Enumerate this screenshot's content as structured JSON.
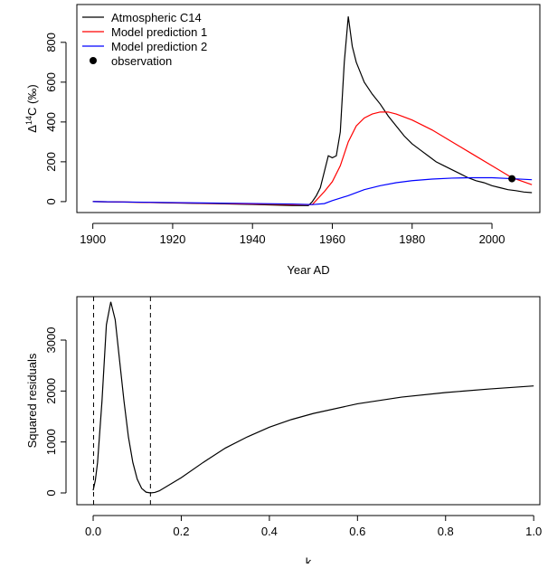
{
  "chart_data": [
    {
      "type": "line",
      "xlabel": "Year AD",
      "ylabel": {
        "prefix": "Δ",
        "sup": "14",
        "suffix": "C (‰)"
      },
      "xlim": [
        1896,
        2012
      ],
      "ylim": [
        -55,
        990
      ],
      "xticks": [
        1900,
        1920,
        1940,
        1960,
        1980,
        2000
      ],
      "yticks": [
        0,
        200,
        400,
        600,
        800
      ],
      "legend": "topleft",
      "series": [
        {
          "name": "Atmospheric C14",
          "color": "#000000",
          "x": [
            1900,
            1910,
            1920,
            1930,
            1940,
            1950,
            1954,
            1955,
            1956,
            1957,
            1958,
            1959,
            1960,
            1961,
            1962,
            1963,
            1964,
            1965,
            1966,
            1967,
            1968,
            1969,
            1970,
            1972,
            1974,
            1976,
            1978,
            1980,
            1982,
            1984,
            1986,
            1988,
            1990,
            1992,
            1994,
            1996,
            1998,
            2000,
            2002,
            2004,
            2006,
            2008,
            2010
          ],
          "values": [
            0,
            -3,
            -7,
            -10,
            -14,
            -20,
            -20,
            0,
            30,
            70,
            150,
            230,
            220,
            230,
            350,
            700,
            930,
            780,
            700,
            650,
            600,
            570,
            540,
            490,
            430,
            380,
            330,
            290,
            260,
            230,
            200,
            180,
            160,
            140,
            120,
            105,
            95,
            80,
            70,
            60,
            55,
            48,
            45
          ]
        },
        {
          "name": "Model prediction 1",
          "color": "#ff0000",
          "x": [
            1900,
            1950,
            1955,
            1958,
            1960,
            1962,
            1964,
            1966,
            1968,
            1970,
            1972,
            1974,
            1976,
            1980,
            1985,
            1990,
            1995,
            2000,
            2005,
            2010
          ],
          "values": [
            0,
            -15,
            -15,
            50,
            100,
            180,
            300,
            380,
            420,
            440,
            450,
            450,
            440,
            410,
            360,
            300,
            240,
            180,
            120,
            85
          ]
        },
        {
          "name": "Model prediction 2",
          "color": "#0000ff",
          "x": [
            1900,
            1950,
            1955,
            1958,
            1960,
            1964,
            1968,
            1972,
            1976,
            1980,
            1985,
            1990,
            1995,
            2000,
            2005,
            2010
          ],
          "values": [
            0,
            -12,
            -15,
            -10,
            5,
            30,
            60,
            80,
            95,
            105,
            113,
            118,
            120,
            120,
            115,
            110
          ]
        },
        {
          "name": "observation",
          "color": "#000000",
          "marker": "point",
          "x": [
            2005
          ],
          "values": [
            115
          ]
        }
      ]
    },
    {
      "type": "line",
      "xlabel": "k",
      "ylabel": "Squared residuals",
      "xlim": [
        -0.037,
        1.014
      ],
      "ylim": [
        -231,
        3852
      ],
      "xticks": [
        {
          "value": 0,
          "label": "0.0"
        },
        0.2,
        0.4,
        0.6,
        0.8,
        {
          "value": 1,
          "label": "1.0"
        }
      ],
      "yticks": [
        0,
        1000,
        2000,
        3000
      ],
      "vlines": [
        0.001,
        0.13
      ],
      "series": [
        {
          "color": "#000000",
          "x": [
            0,
            0.005,
            0.01,
            0.02,
            0.03,
            0.04,
            0.05,
            0.06,
            0.07,
            0.08,
            0.09,
            0.1,
            0.11,
            0.12,
            0.13,
            0.14,
            0.15,
            0.2,
            0.25,
            0.3,
            0.35,
            0.4,
            0.45,
            0.5,
            0.6,
            0.7,
            0.8,
            0.9,
            1.0
          ],
          "values": [
            50,
            250,
            600,
            1800,
            3300,
            3750,
            3400,
            2600,
            1800,
            1100,
            600,
            270,
            90,
            15,
            0,
            10,
            40,
            300,
            600,
            880,
            1100,
            1290,
            1440,
            1560,
            1750,
            1880,
            1970,
            2040,
            2100
          ]
        }
      ]
    }
  ]
}
